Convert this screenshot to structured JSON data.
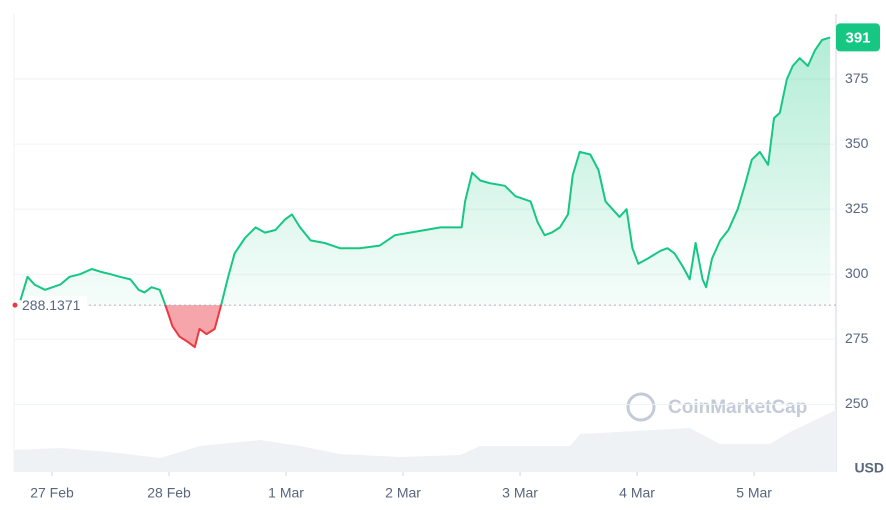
{
  "chart_data": {
    "type": "line",
    "x": [
      -0.27,
      -0.21,
      -0.15,
      -0.06,
      0.07,
      0.15,
      0.24,
      0.34,
      0.41,
      0.5,
      0.58,
      0.67,
      0.74,
      0.79,
      0.85,
      0.92,
      0.97,
      1.03,
      1.09,
      1.16,
      1.22,
      1.26,
      1.32,
      1.39,
      1.45,
      1.5,
      1.56,
      1.65,
      1.74,
      1.82,
      1.91,
      1.99,
      2.05,
      2.12,
      2.21,
      2.33,
      2.46,
      2.63,
      2.8,
      2.93,
      3.06,
      3.19,
      3.32,
      3.44,
      3.5,
      3.53,
      3.59,
      3.66,
      3.74,
      3.87,
      3.96,
      4.09,
      4.15,
      4.21,
      4.27,
      4.34,
      4.41,
      4.45,
      4.51,
      4.6,
      4.67,
      4.73,
      4.79,
      4.85,
      4.91,
      4.96,
      5.01,
      5.09,
      5.2,
      5.26,
      5.32,
      5.39,
      5.45,
      5.5,
      5.56,
      5.59,
      5.64,
      5.71,
      5.78,
      5.86,
      5.92,
      5.98,
      6.05,
      6.12,
      6.17,
      6.22,
      6.28,
      6.33,
      6.39,
      6.46,
      6.52,
      6.58,
      6.65
    ],
    "values": [
      290,
      299,
      296,
      294,
      296,
      299,
      300,
      302,
      301,
      300,
      299,
      298,
      294,
      293,
      295,
      294,
      288,
      280,
      276,
      274,
      272,
      279,
      277,
      279,
      289,
      298,
      308,
      314,
      318,
      316,
      317,
      321,
      323,
      318,
      313,
      312,
      310,
      310,
      311,
      315,
      316,
      317,
      318,
      318,
      318,
      328,
      339,
      336,
      335,
      334,
      330,
      328,
      320,
      315,
      316,
      318,
      323,
      338,
      347,
      346,
      340,
      328,
      325,
      322,
      325,
      310,
      304,
      306,
      309,
      310,
      308,
      303,
      298,
      312,
      298,
      295,
      306,
      313,
      317,
      325,
      334,
      344,
      347,
      342,
      360,
      362,
      375,
      380,
      383,
      380,
      386,
      390,
      391
    ],
    "color": "#16c784",
    "negative_color": "#ea3943",
    "baseline": 288.1371,
    "xlim": [
      -0.325,
      6.7
    ],
    "xticks": [
      {
        "value": 0,
        "label": "27 Feb"
      },
      {
        "value": 1,
        "label": "28 Feb"
      },
      {
        "value": 2,
        "label": "1 Mar"
      },
      {
        "value": 3,
        "label": "2 Mar"
      },
      {
        "value": 4,
        "label": "3 Mar"
      },
      {
        "value": 5,
        "label": "4 Mar"
      },
      {
        "value": 6,
        "label": "5 Mar"
      }
    ],
    "ylim": [
      224,
      400
    ],
    "yticks": [
      250,
      275,
      300,
      325,
      350,
      375
    ],
    "grid": true,
    "unit_label": "USD",
    "watermark": "CoinMarketCap"
  }
}
